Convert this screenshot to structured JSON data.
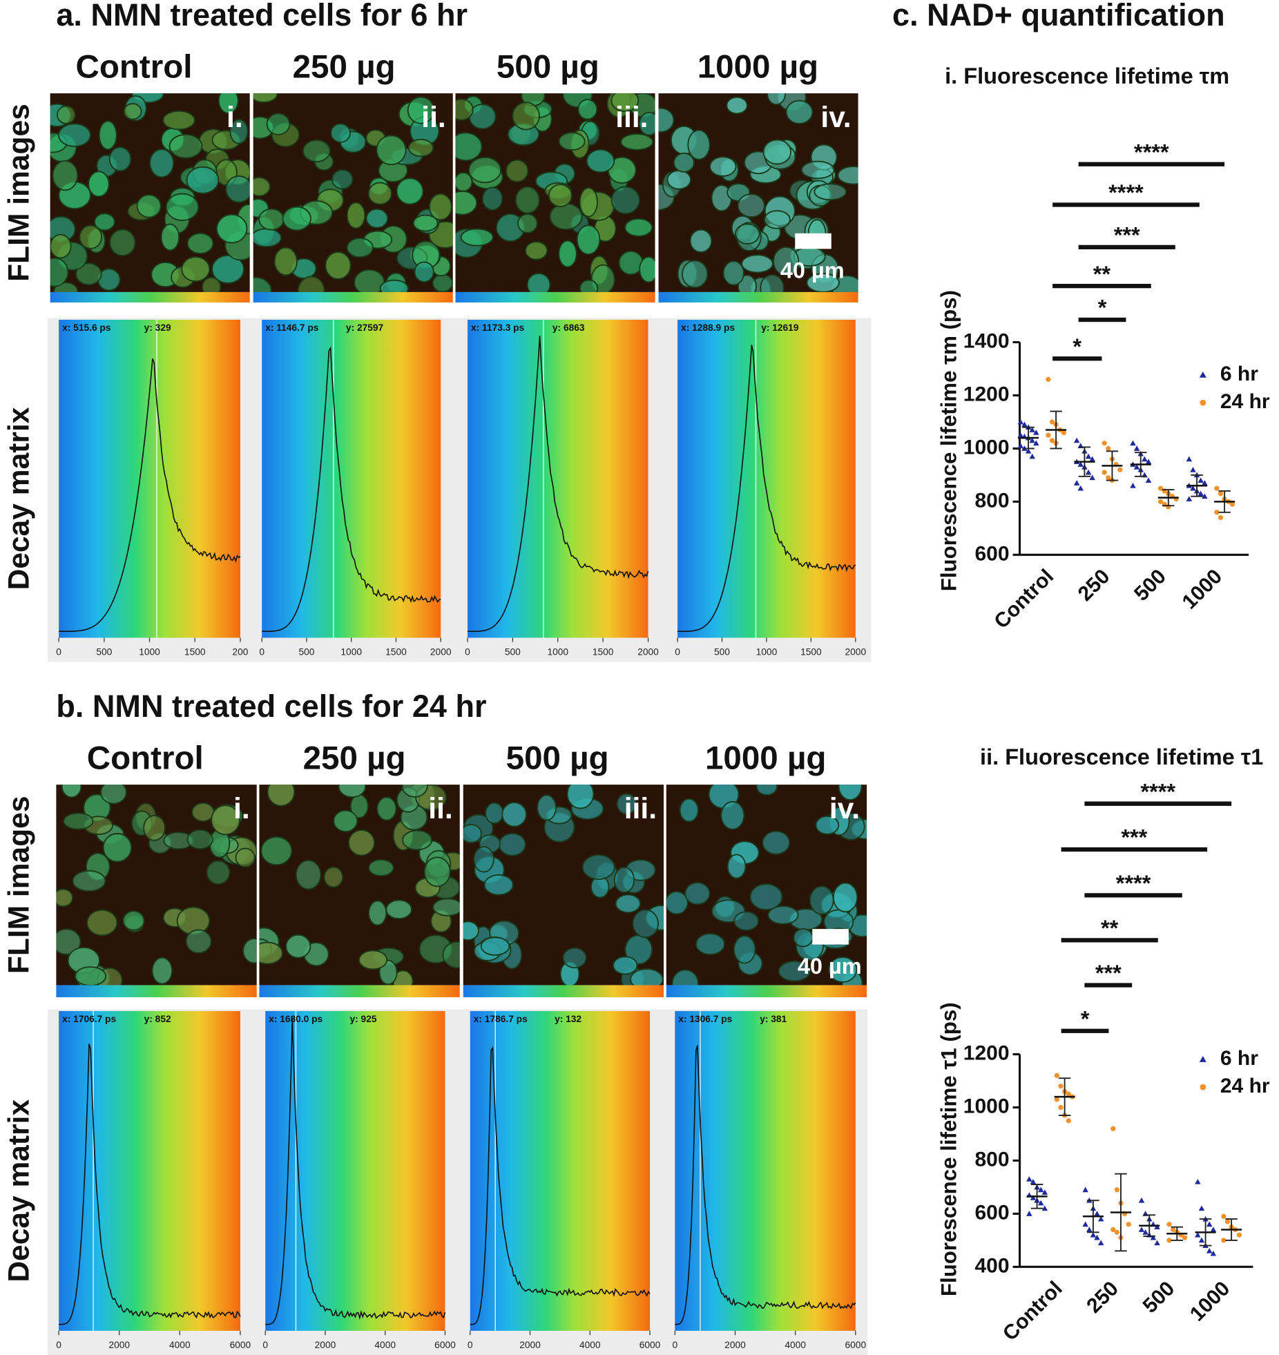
{
  "panels": {
    "a": {
      "title": "a. NMN treated cells for 6 hr",
      "row_labels": [
        "FLIM images",
        "Decay matrix"
      ],
      "columns": [
        "Control",
        "250 µg",
        "500 µg",
        "1000 µg"
      ],
      "image_labels": [
        "i.",
        "ii.",
        "iii.",
        "iv."
      ],
      "scale_bar": "40 µm",
      "decay": [
        {
          "readout_x": "x: 515.6  ps",
          "readout_y": "y: 329",
          "ticks": [
            "0",
            "500",
            "1000",
            "1500",
            "200"
          ]
        },
        {
          "readout_x": "x: 1146.7  ps",
          "readout_y": "y: 27597",
          "ticks": [
            "0",
            "500",
            "1000",
            "1500",
            "2000"
          ]
        },
        {
          "readout_x": "x: 1173.3  ps",
          "readout_y": "y: 6863",
          "ticks": [
            "0",
            "500",
            "1000",
            "1500",
            "2000"
          ]
        },
        {
          "readout_x": "x: 1288.9  ps",
          "readout_y": "y: 12619",
          "ticks": [
            "0",
            "500",
            "1000",
            "1500",
            "2000"
          ]
        }
      ]
    },
    "b": {
      "title": "b. NMN treated cells for 24 hr",
      "row_labels": [
        "FLIM images",
        "Decay matrix"
      ],
      "columns": [
        "Control",
        "250 µg",
        "500 µg",
        "1000 µg"
      ],
      "image_labels": [
        "i.",
        "ii.",
        "iii.",
        "iv."
      ],
      "scale_bar": "40 µm",
      "decay": [
        {
          "readout_x": "x: 1706.7  ps",
          "readout_y": "y: 852",
          "ticks": [
            "0",
            "2000",
            "4000",
            "6000"
          ]
        },
        {
          "readout_x": "x: 1680.0  ps",
          "readout_y": "y: 925",
          "ticks": [
            "0",
            "2000",
            "4000",
            "6000"
          ]
        },
        {
          "readout_x": "x: 1786.7  ps",
          "readout_y": "y: 132",
          "ticks": [
            "0",
            "2000",
            "4000",
            "6000"
          ]
        },
        {
          "readout_x": "x: 1306.7  ps",
          "readout_y": "y: 381",
          "ticks": [
            "0",
            "2000",
            "4000",
            "6000"
          ]
        }
      ]
    },
    "c": {
      "title": "c. NAD+ quantification"
    }
  },
  "chart_data": [
    {
      "type": "dotplot",
      "title": "i. Fluorescence lifetime τm",
      "ylabel": "Fluorescence lifetime τm (ps)",
      "categories": [
        "Control",
        "250",
        "500",
        "1000"
      ],
      "ylim": [
        600,
        1400
      ],
      "yticks": [
        600,
        800,
        1000,
        1200,
        1400
      ],
      "legend": "upper right",
      "annotations": [
        "****",
        "****",
        "***",
        "**",
        "*",
        "*"
      ],
      "series": [
        {
          "name": "6 hr",
          "color": "#1f2a9c",
          "marker": "triangle",
          "values": [
            1040,
            950,
            940,
            860
          ],
          "errors": [
            40,
            55,
            45,
            40
          ],
          "points": [
            [
              1100,
              1090,
              1080,
              1070,
              1060,
              1050,
              1045,
              1040,
              1030,
              1020,
              1010,
              1000,
              990,
              970
            ],
            [
              1030,
              1010,
              990,
              970,
              960,
              950,
              940,
              930,
              910,
              890,
              870,
              850
            ],
            [
              1020,
              1000,
              980,
              960,
              950,
              940,
              930,
              920,
              900,
              880,
              860
            ],
            [
              960,
              920,
              900,
              880,
              870,
              860,
              850,
              840,
              830,
              820,
              810
            ]
          ]
        },
        {
          "name": "24 hr",
          "color": "#f0912a",
          "marker": "circle",
          "values": [
            1070,
            935,
            815,
            800
          ],
          "errors": [
            70,
            55,
            30,
            40
          ],
          "points": [
            [
              1260,
              1100,
              1090,
              1070,
              1060,
              1050,
              1030,
              1020
            ],
            [
              1020,
              1000,
              960,
              940,
              920,
              910,
              890,
              880
            ],
            [
              850,
              840,
              830,
              820,
              810,
              800,
              790,
              780
            ],
            [
              850,
              830,
              810,
              800,
              790,
              760,
              740
            ]
          ]
        }
      ]
    },
    {
      "type": "dotplot",
      "title": "ii. Fluorescence lifetime τ1",
      "ylabel": "Fluorescence lifetime τ1 (ps)",
      "categories": [
        "Control",
        "250",
        "500",
        "1000"
      ],
      "ylim": [
        400,
        1200
      ],
      "yticks": [
        400,
        600,
        800,
        1000,
        1200
      ],
      "legend": "upper right",
      "annotations": [
        "****",
        "***",
        "****",
        "**",
        "***",
        "*"
      ],
      "series": [
        {
          "name": "6 hr",
          "color": "#1f2a9c",
          "marker": "triangle",
          "values": [
            665,
            590,
            555,
            530
          ],
          "errors": [
            45,
            60,
            40,
            50
          ],
          "points": [
            [
              730,
              720,
              700,
              690,
              680,
              670,
              660,
              650,
              640,
              620,
              600
            ],
            [
              690,
              650,
              620,
              600,
              580,
              560,
              540,
              520,
              510,
              490
            ],
            [
              650,
              600,
              580,
              560,
              550,
              540,
              530,
              520,
              510,
              490
            ],
            [
              720,
              620,
              580,
              560,
              540,
              520,
              500,
              480,
              460,
              450
            ]
          ]
        },
        {
          "name": "24 hr",
          "color": "#f0912a",
          "marker": "circle",
          "values": [
            1040,
            605,
            525,
            540
          ],
          "errors": [
            70,
            145,
            25,
            40
          ],
          "points": [
            [
              1120,
              1080,
              1060,
              1050,
              1040,
              1030,
              1000,
              970,
              950
            ],
            [
              920,
              690,
              640,
              600,
              560,
              540,
              530,
              510
            ],
            [
              560,
              540,
              530,
              520,
              510,
              500
            ],
            [
              590,
              570,
              550,
              540,
              520,
              500
            ]
          ]
        }
      ]
    }
  ]
}
